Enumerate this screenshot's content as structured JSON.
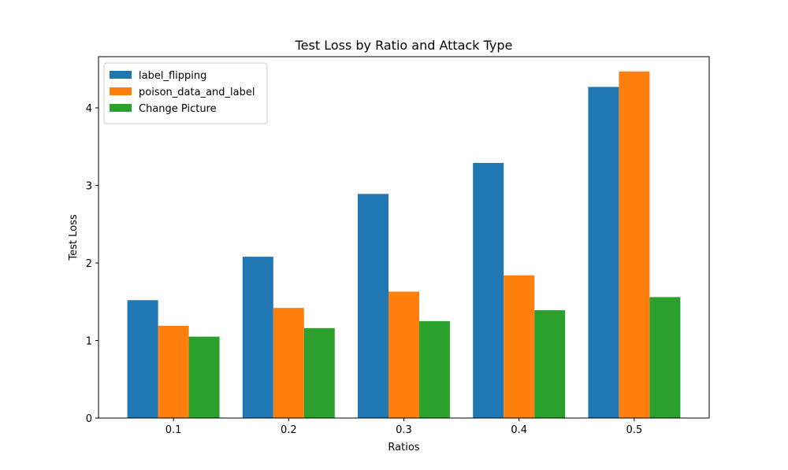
{
  "chart_data": {
    "type": "bar",
    "title": "Test Loss by Ratio and Attack Type",
    "xlabel": "Ratios",
    "ylabel": "Test Loss",
    "categories": [
      "0.1",
      "0.2",
      "0.3",
      "0.4",
      "0.5"
    ],
    "series": [
      {
        "name": "label_flipping",
        "color": "#1f77b4",
        "values": [
          1.52,
          2.08,
          2.89,
          3.29,
          4.27
        ]
      },
      {
        "name": "poison_data_and_label",
        "color": "#ff7f0e",
        "values": [
          1.19,
          1.42,
          1.63,
          1.84,
          4.47
        ]
      },
      {
        "name": "Change Picture",
        "color": "#2ca02c",
        "values": [
          1.05,
          1.16,
          1.25,
          1.39,
          1.56
        ]
      }
    ],
    "ylim": [
      0,
      4.66
    ],
    "yticks": [
      0,
      1,
      2,
      3,
      4
    ],
    "grid": false,
    "legend_position": "top-left"
  }
}
